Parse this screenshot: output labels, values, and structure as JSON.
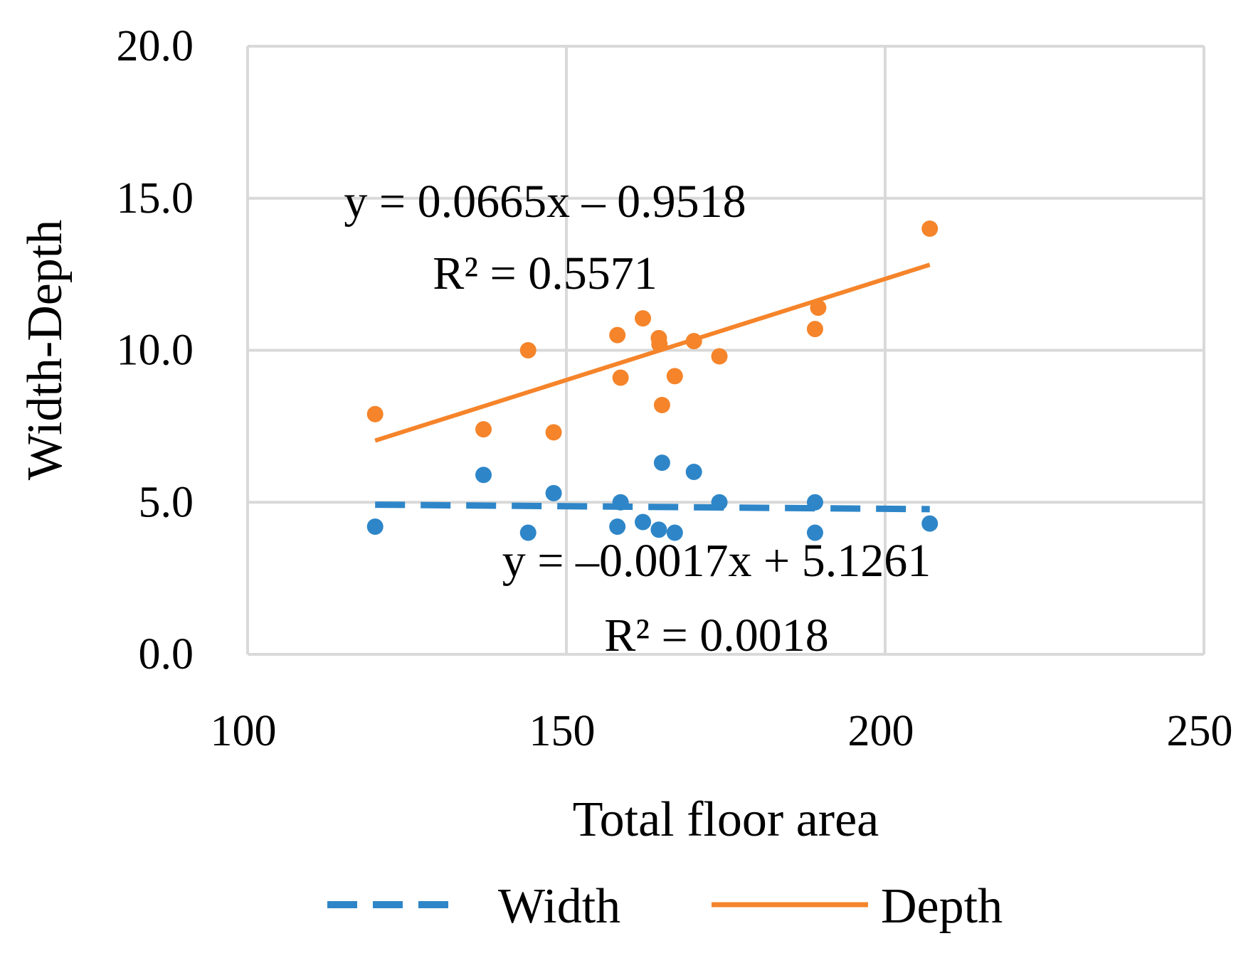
{
  "chart_data": {
    "type": "scatter",
    "title": "",
    "xlabel": "Total floor area",
    "ylabel": "Width-Depth",
    "xlim": [
      100,
      250
    ],
    "ylim": [
      0,
      20
    ],
    "x_ticks": [
      100,
      150,
      200,
      250
    ],
    "x_tick_labels": [
      "100",
      "150",
      "200",
      "250"
    ],
    "y_ticks": [
      0,
      5,
      10,
      15,
      20
    ],
    "y_tick_labels": [
      "0.0",
      "5.0",
      "10.0",
      "15.0",
      "20.0"
    ],
    "grid": true,
    "legend_position": "bottom",
    "series": [
      {
        "name": "Width",
        "color": "#2E86C8",
        "trendline_style": "dashed",
        "x": [
          120,
          137,
          144,
          148,
          158,
          158.5,
          162,
          164.5,
          165,
          167,
          170,
          174,
          189,
          189,
          207
        ],
        "y": [
          4.2,
          5.9,
          4.0,
          5.3,
          4.2,
          5.0,
          4.35,
          4.1,
          6.3,
          4.0,
          6.0,
          5.0,
          5.0,
          4.0,
          4.3
        ],
        "trendline": {
          "slope": -0.0017,
          "intercept": 5.1261,
          "x_range": [
            120,
            207
          ]
        },
        "equation": "y = –0.0017x + 5.1261",
        "r_squared": "R² = 0.0018"
      },
      {
        "name": "Depth",
        "color": "#F5842A",
        "trendline_style": "solid",
        "x": [
          120,
          137,
          144,
          148,
          158,
          158.5,
          162,
          164.5,
          164.6,
          165,
          167,
          170,
          174,
          189,
          189.5,
          207
        ],
        "y": [
          7.9,
          7.4,
          10.0,
          7.3,
          10.5,
          9.1,
          11.05,
          10.4,
          10.2,
          8.2,
          9.15,
          10.3,
          9.8,
          10.7,
          11.4,
          14.0
        ],
        "trendline": {
          "slope": 0.0665,
          "intercept": -0.9518,
          "x_range": [
            120,
            207
          ]
        },
        "equation": "y = 0.0665x – 0.9518",
        "r_squared": "R² = 0.5571"
      }
    ]
  }
}
